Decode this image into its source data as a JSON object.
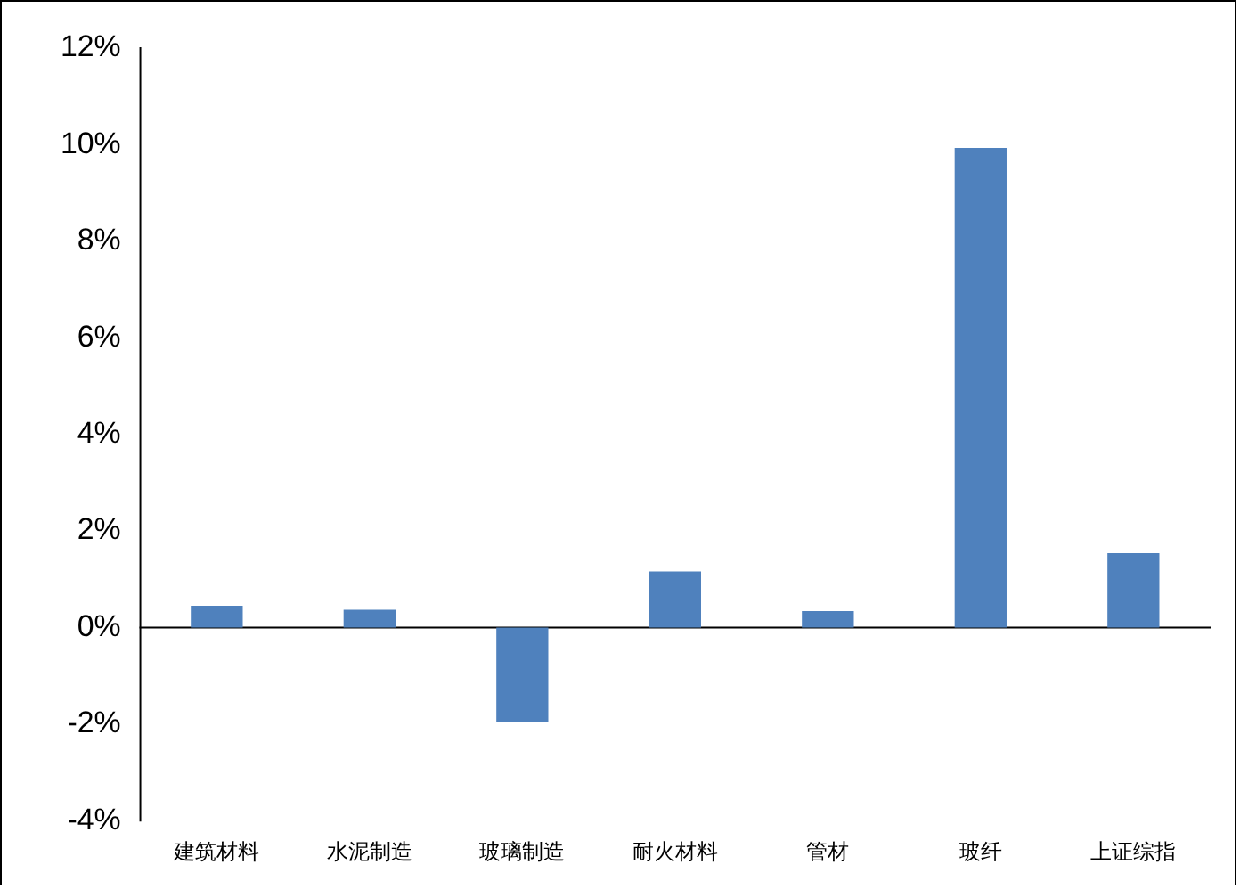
{
  "chart_data": {
    "type": "bar",
    "categories": [
      "建筑材料",
      "水泥制造",
      "玻璃制造",
      "耐火材料",
      "管材",
      "玻纤",
      "上证综指"
    ],
    "values": [
      0.45,
      0.37,
      -1.95,
      1.16,
      0.34,
      9.93,
      1.54
    ],
    "color": "#4f81bd",
    "ylim": [
      -4,
      12
    ],
    "yticks": [
      {
        "value": -4,
        "label": "-4%"
      },
      {
        "value": -2,
        "label": "-2%"
      },
      {
        "value": 0,
        "label": "0%"
      },
      {
        "value": 2,
        "label": "2%"
      },
      {
        "value": 4,
        "label": "4%"
      },
      {
        "value": 6,
        "label": "6%"
      },
      {
        "value": 8,
        "label": "8%"
      },
      {
        "value": 10,
        "label": "10%"
      },
      {
        "value": 12,
        "label": "12%"
      }
    ],
    "legend": false
  }
}
